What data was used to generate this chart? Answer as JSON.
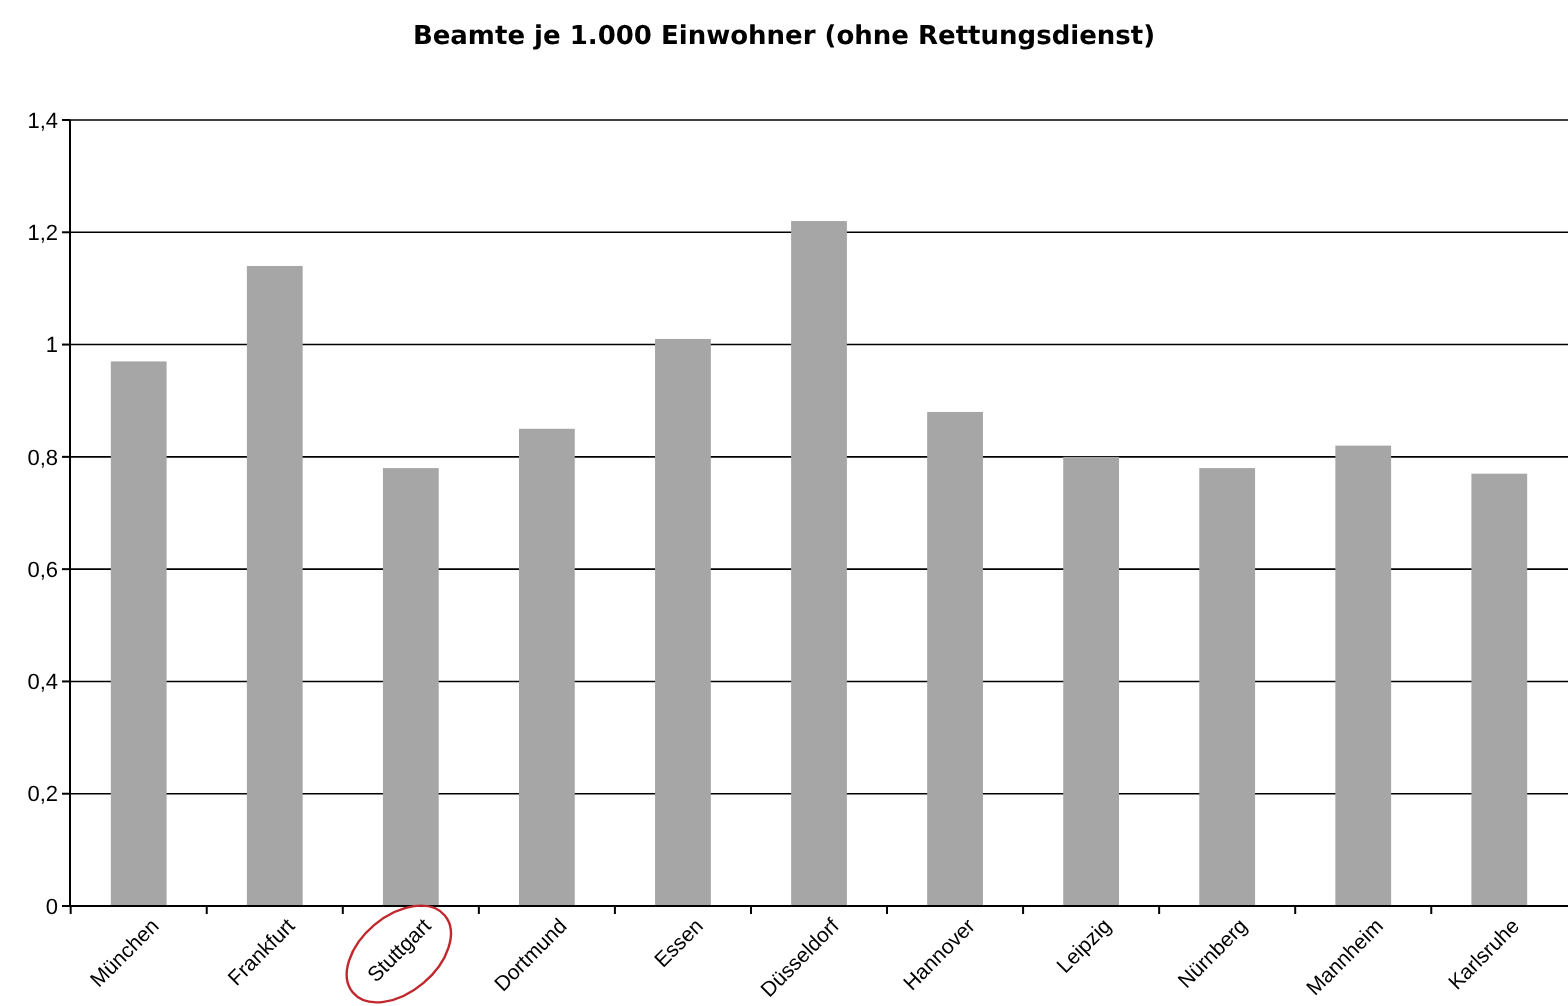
{
  "chart_data": {
    "type": "bar",
    "title": "Beamte je 1.000 Einwohner (ohne Rettungsdienst)",
    "categories": [
      "München",
      "Frankfurt",
      "Stuttgart",
      "Dortmund",
      "Essen",
      "Düsseldorf",
      "Hannover",
      "Leipzig",
      "Nürnberg",
      "Mannheim",
      "Karlsruhe"
    ],
    "values": [
      0.97,
      1.14,
      0.78,
      0.85,
      1.01,
      1.22,
      0.88,
      0.8,
      0.78,
      0.82,
      0.77
    ],
    "color": "#a6a6a6",
    "ylim": [
      0,
      1.4
    ],
    "yticks": [
      0,
      {
        "value": 0.2,
        "label": "0,2"
      },
      {
        "value": 0.4,
        "label": "0,4"
      },
      {
        "value": 0.6,
        "label": "0,6"
      },
      {
        "value": 0.8,
        "label": "0,8"
      },
      1,
      {
        "value": 1.2,
        "label": "1,2"
      },
      {
        "value": 1.4,
        "label": "1,4"
      }
    ],
    "grid": "y"
  }
}
